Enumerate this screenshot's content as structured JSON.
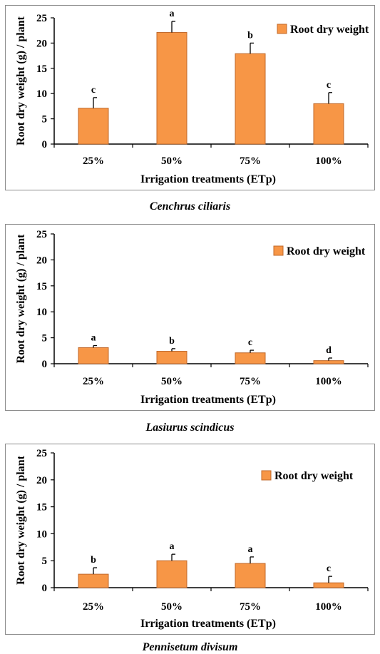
{
  "colors": {
    "bar": "#F79646",
    "bar_stroke": "#C0682A",
    "axis": "#000000"
  },
  "chart_data": [
    {
      "type": "bar",
      "categories": [
        "25%",
        "50%",
        "75%",
        "100%"
      ],
      "series": [
        {
          "name": "Root dry weight",
          "values": [
            7.1,
            22.1,
            17.9,
            8.0
          ],
          "errors": [
            2.1,
            2.2,
            2.1,
            2.2
          ]
        }
      ],
      "letters": [
        "c",
        "a",
        "b",
        "c"
      ],
      "xlabel": "Irrigation treatments (ETp)",
      "ylabel": "Root dry weight (g) / plant",
      "ylim": [
        0,
        25
      ],
      "yticks": [
        0,
        5,
        10,
        15,
        20,
        25
      ],
      "legend": "top-right",
      "caption": "Cenchrus ciliaris"
    },
    {
      "type": "bar",
      "categories": [
        "25%",
        "50%",
        "75%",
        "100%"
      ],
      "series": [
        {
          "name": "Root dry weight",
          "values": [
            3.1,
            2.4,
            2.1,
            0.6
          ],
          "errors": [
            0.4,
            0.5,
            0.5,
            0.5
          ]
        }
      ],
      "letters": [
        "a",
        "b",
        "c",
        "d"
      ],
      "xlabel": "Irrigation treatments (ETp)",
      "ylabel": "Root dry weight (g) / plant",
      "ylim": [
        0,
        25
      ],
      "yticks": [
        0,
        5,
        10,
        15,
        20,
        25
      ],
      "legend": "top-right",
      "caption": "Lasiurus scindicus"
    },
    {
      "type": "bar",
      "categories": [
        "25%",
        "50%",
        "75%",
        "100%"
      ],
      "series": [
        {
          "name": "Root dry weight",
          "values": [
            2.5,
            5.0,
            4.5,
            0.9
          ],
          "errors": [
            1.2,
            1.2,
            1.2,
            1.2
          ]
        }
      ],
      "letters": [
        "b",
        "a",
        "a",
        "c"
      ],
      "xlabel": "Irrigation treatments (ETp)",
      "ylabel": "Root dry weight (g) / plant",
      "ylim": [
        0,
        25
      ],
      "yticks": [
        0,
        5,
        10,
        15,
        20,
        25
      ],
      "legend": "top-right",
      "caption": "Pennisetum divisum"
    }
  ]
}
